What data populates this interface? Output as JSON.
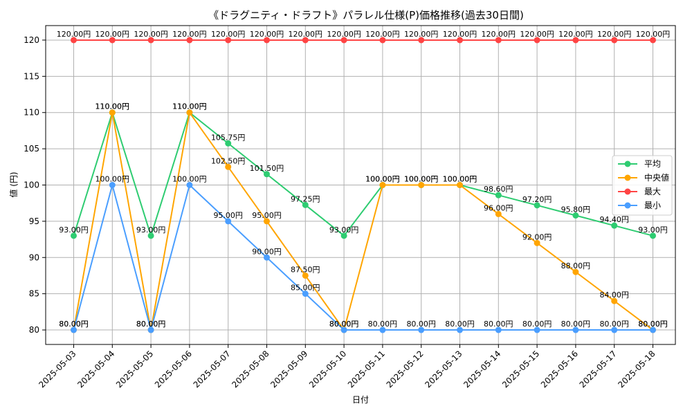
{
  "chart_data": {
    "type": "line",
    "title": "《ドラグニティ・ドラフト》パラレル仕様(P)価格推移(過去30日間)",
    "xlabel": "日付",
    "ylabel": "値 (円)",
    "ylim": [
      78,
      122
    ],
    "yticks": [
      80,
      85,
      90,
      95,
      100,
      105,
      110,
      115,
      120
    ],
    "grid": true,
    "legend_position": "right",
    "categories": [
      "2025-05-03",
      "2025-05-04",
      "2025-05-05",
      "2025-05-06",
      "2025-05-07",
      "2025-05-08",
      "2025-05-09",
      "2025-05-10",
      "2025-05-11",
      "2025-05-12",
      "2025-05-13",
      "2025-05-14",
      "2025-05-15",
      "2025-05-16",
      "2025-05-17",
      "2025-05-18"
    ],
    "label_suffix": "円",
    "series": [
      {
        "name": "平均",
        "color": "#2ecc71",
        "values": [
          93,
          110,
          93,
          110,
          105.75,
          101.5,
          97.25,
          93,
          100,
          100,
          100,
          98.6,
          97.2,
          95.8,
          94.4,
          93
        ]
      },
      {
        "name": "中央値",
        "color": "#ffa500",
        "values": [
          80,
          110,
          80,
          110,
          102.5,
          95,
          87.5,
          80,
          100,
          100,
          100,
          96,
          92,
          88,
          84,
          80
        ]
      },
      {
        "name": "最大",
        "color": "#ff4444",
        "values": [
          120,
          120,
          120,
          120,
          120,
          120,
          120,
          120,
          120,
          120,
          120,
          120,
          120,
          120,
          120,
          120
        ]
      },
      {
        "name": "最小",
        "color": "#4a9eff",
        "values": [
          80,
          100,
          80,
          100,
          95,
          90,
          85,
          80,
          80,
          80,
          80,
          80,
          80,
          80,
          80,
          80
        ]
      }
    ]
  }
}
